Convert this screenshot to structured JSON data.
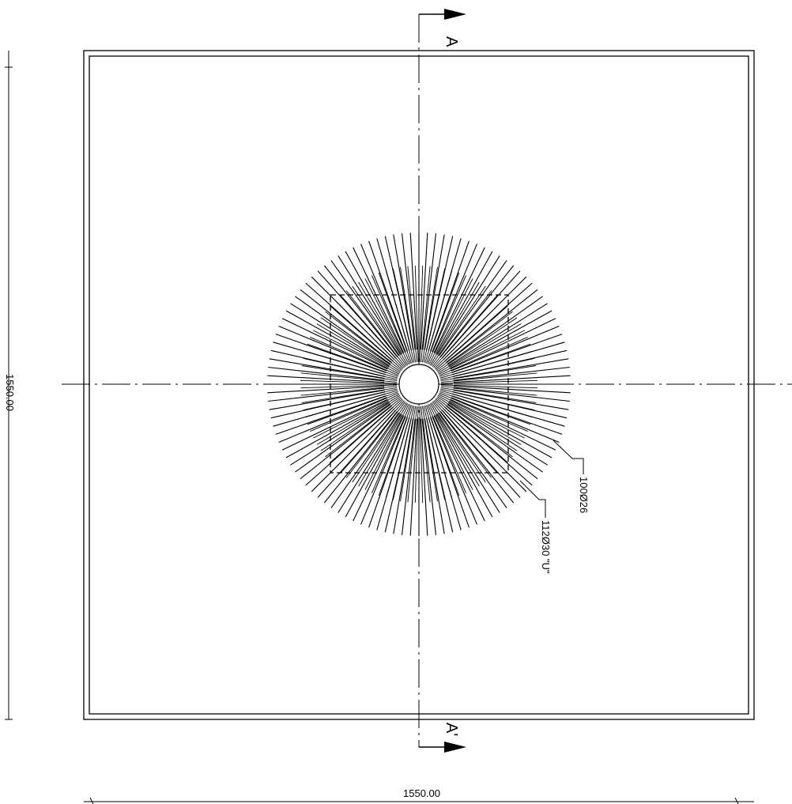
{
  "drawing": {
    "section_start_label": "A",
    "section_end_label": "A'",
    "width_dimension": "1550.00",
    "height_dimension": "1550.00",
    "callout_inner_bars": "100Ø26",
    "callout_outer_bars": "112Ø30 \"U\"",
    "inner_bar_count": 100,
    "outer_bar_count": 112,
    "colors": {
      "line": "#000000",
      "background": "#ffffff"
    }
  }
}
